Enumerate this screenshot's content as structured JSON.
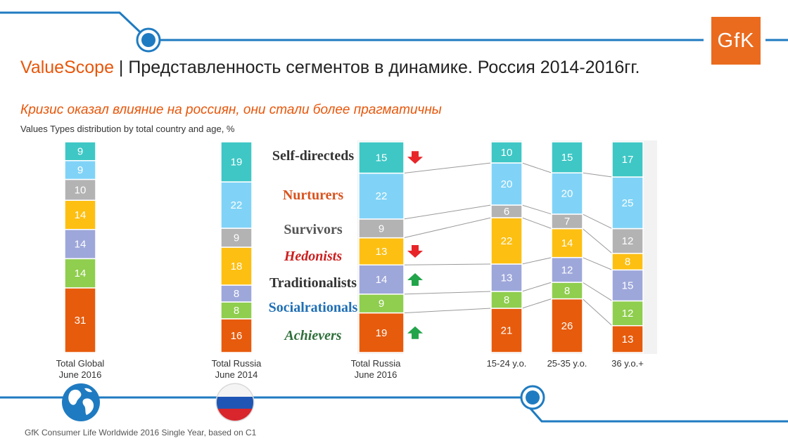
{
  "header": {
    "brand": "ValueScope",
    "title_rest": " | Представленность сегментов в динамике. Россия 2014-2016гг.",
    "subtitle": "Кризис оказал влияние на россиян, они стали более прагматичны",
    "caption": "Values Types distribution by total country and age, %",
    "logo_text": "GfK"
  },
  "footer": {
    "source": "GfK Consumer Life  Worldwide 2016 Single Year, based on C1"
  },
  "colors": {
    "Self-directeds": "#3ec7c5",
    "Nurturers": "#80d3f7",
    "Survivors": "#b3b3b3",
    "Hedonists": "#fdbf12",
    "Traditionalists": "#9ea7da",
    "Socialrationals": "#8fce4e",
    "Achievers": "#e75b0c"
  },
  "chart_data": {
    "type": "bar",
    "stacked": true,
    "normalized_percent": true,
    "categories": [
      [
        "Total Global",
        "June 2016"
      ],
      [
        "Total Russia",
        "June 2014"
      ],
      [
        "Total Russia",
        "June 2016"
      ],
      [
        "15-24 y.o."
      ],
      [
        "25-35 y.o."
      ],
      [
        "36 y.o.+"
      ]
    ],
    "series": [
      {
        "name": "Achievers",
        "values": [
          31,
          16,
          19,
          21,
          26,
          13
        ]
      },
      {
        "name": "Socialrationals",
        "values": [
          14,
          8,
          9,
          8,
          8,
          12
        ]
      },
      {
        "name": "Traditionalists",
        "values": [
          14,
          8,
          14,
          13,
          12,
          15
        ]
      },
      {
        "name": "Hedonists",
        "values": [
          14,
          18,
          13,
          22,
          14,
          8
        ]
      },
      {
        "name": "Survivors",
        "values": [
          10,
          9,
          9,
          6,
          7,
          12
        ]
      },
      {
        "name": "Nurturers",
        "values": [
          9,
          22,
          22,
          20,
          20,
          25
        ]
      },
      {
        "name": "Self-directeds",
        "values": [
          9,
          19,
          15,
          10,
          15,
          17
        ]
      }
    ],
    "change_arrows": [
      {
        "series": "Self-directeds",
        "direction": "down",
        "color": "#e8262a"
      },
      {
        "series": "Hedonists",
        "direction": "down",
        "color": "#e8262a"
      },
      {
        "series": "Traditionalists",
        "direction": "up",
        "color": "#22a44a"
      },
      {
        "series": "Achievers",
        "direction": "up",
        "color": "#22a44a"
      }
    ],
    "category_icons": [
      "globe-icon",
      "russia-flag-icon"
    ]
  }
}
